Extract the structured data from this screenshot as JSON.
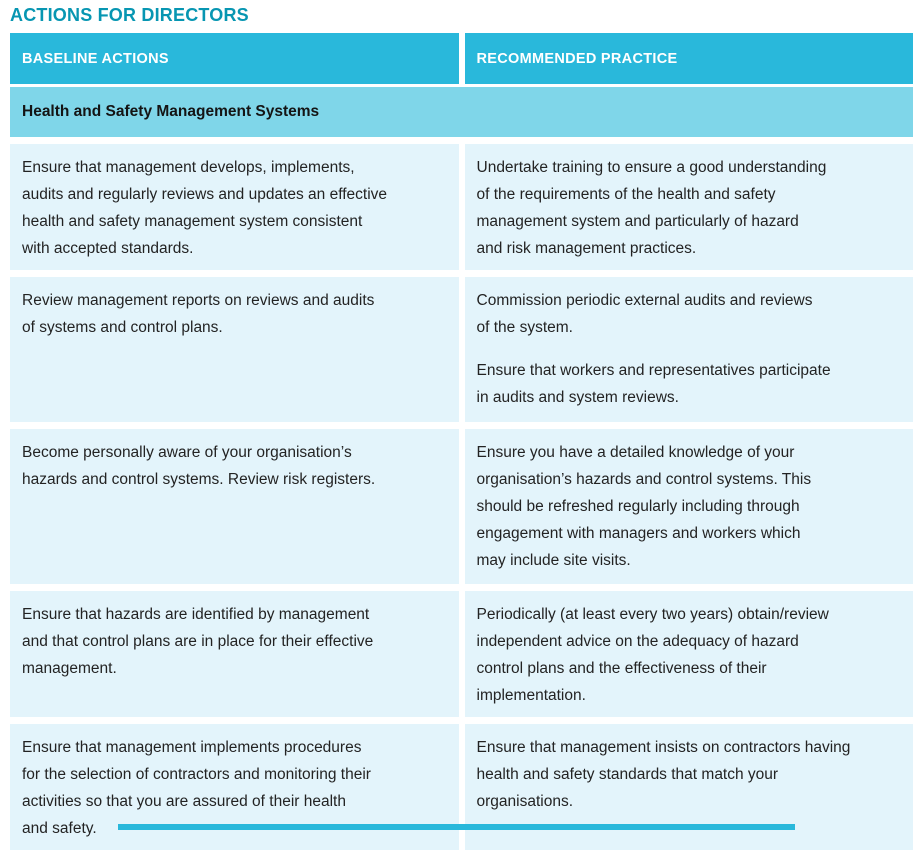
{
  "document": {
    "title": "ACTIONS FOR DIRECTORS"
  },
  "table": {
    "headers": {
      "baseline": "BASELINE ACTIONS",
      "recommended": "RECOMMENDED PRACTICE"
    },
    "section_title": "Health and Safety Management Systems",
    "rows": [
      {
        "baseline": [
          "Ensure that management develops, implements,\naudits and regularly reviews and updates an effective\nhealth and safety management system consistent\nwith accepted standards."
        ],
        "recommended": [
          "Undertake training to ensure a good understanding\nof the requirements of the health and safety\nmanagement system and particularly of hazard\nand risk management practices."
        ]
      },
      {
        "baseline": [
          "Review management reports on reviews and audits\nof systems and control plans."
        ],
        "recommended": [
          "Commission periodic external audits and reviews\nof the system.",
          "Ensure that workers and representatives participate\nin audits and system reviews."
        ]
      },
      {
        "baseline": [
          "Become personally aware of your organisation’s\nhazards and control systems. Review risk registers."
        ],
        "recommended": [
          "Ensure you have a detailed knowledge of your\norganisation’s hazards and control systems. This\nshould be refreshed regularly including through\nengagement with managers and workers which\nmay include site visits."
        ]
      },
      {
        "baseline": [
          "Ensure that hazards are identified by management\nand that control plans are in place for their effective\nmanagement."
        ],
        "recommended": [
          "Periodically (at least every two years) obtain/review\nindependent advice on the adequacy of hazard\ncontrol plans and the effectiveness of their\nimplementation."
        ]
      },
      {
        "baseline": [
          "Ensure that management implements procedures\nfor the selection of contractors and monitoring their\nactivities so that you are assured of their health\nand safety."
        ],
        "recommended": [
          "Ensure that management insists on contractors having\nhealth and safety standards that match your\norganisations."
        ]
      }
    ]
  },
  "colors": {
    "title_text": "#0796b2",
    "header_bg": "#29b8db",
    "header_text": "#ffffff",
    "section_bg": "#7fd6e9",
    "section_text": "#141414",
    "cell_bg": "#e3f4fb",
    "body_text": "#232323"
  }
}
